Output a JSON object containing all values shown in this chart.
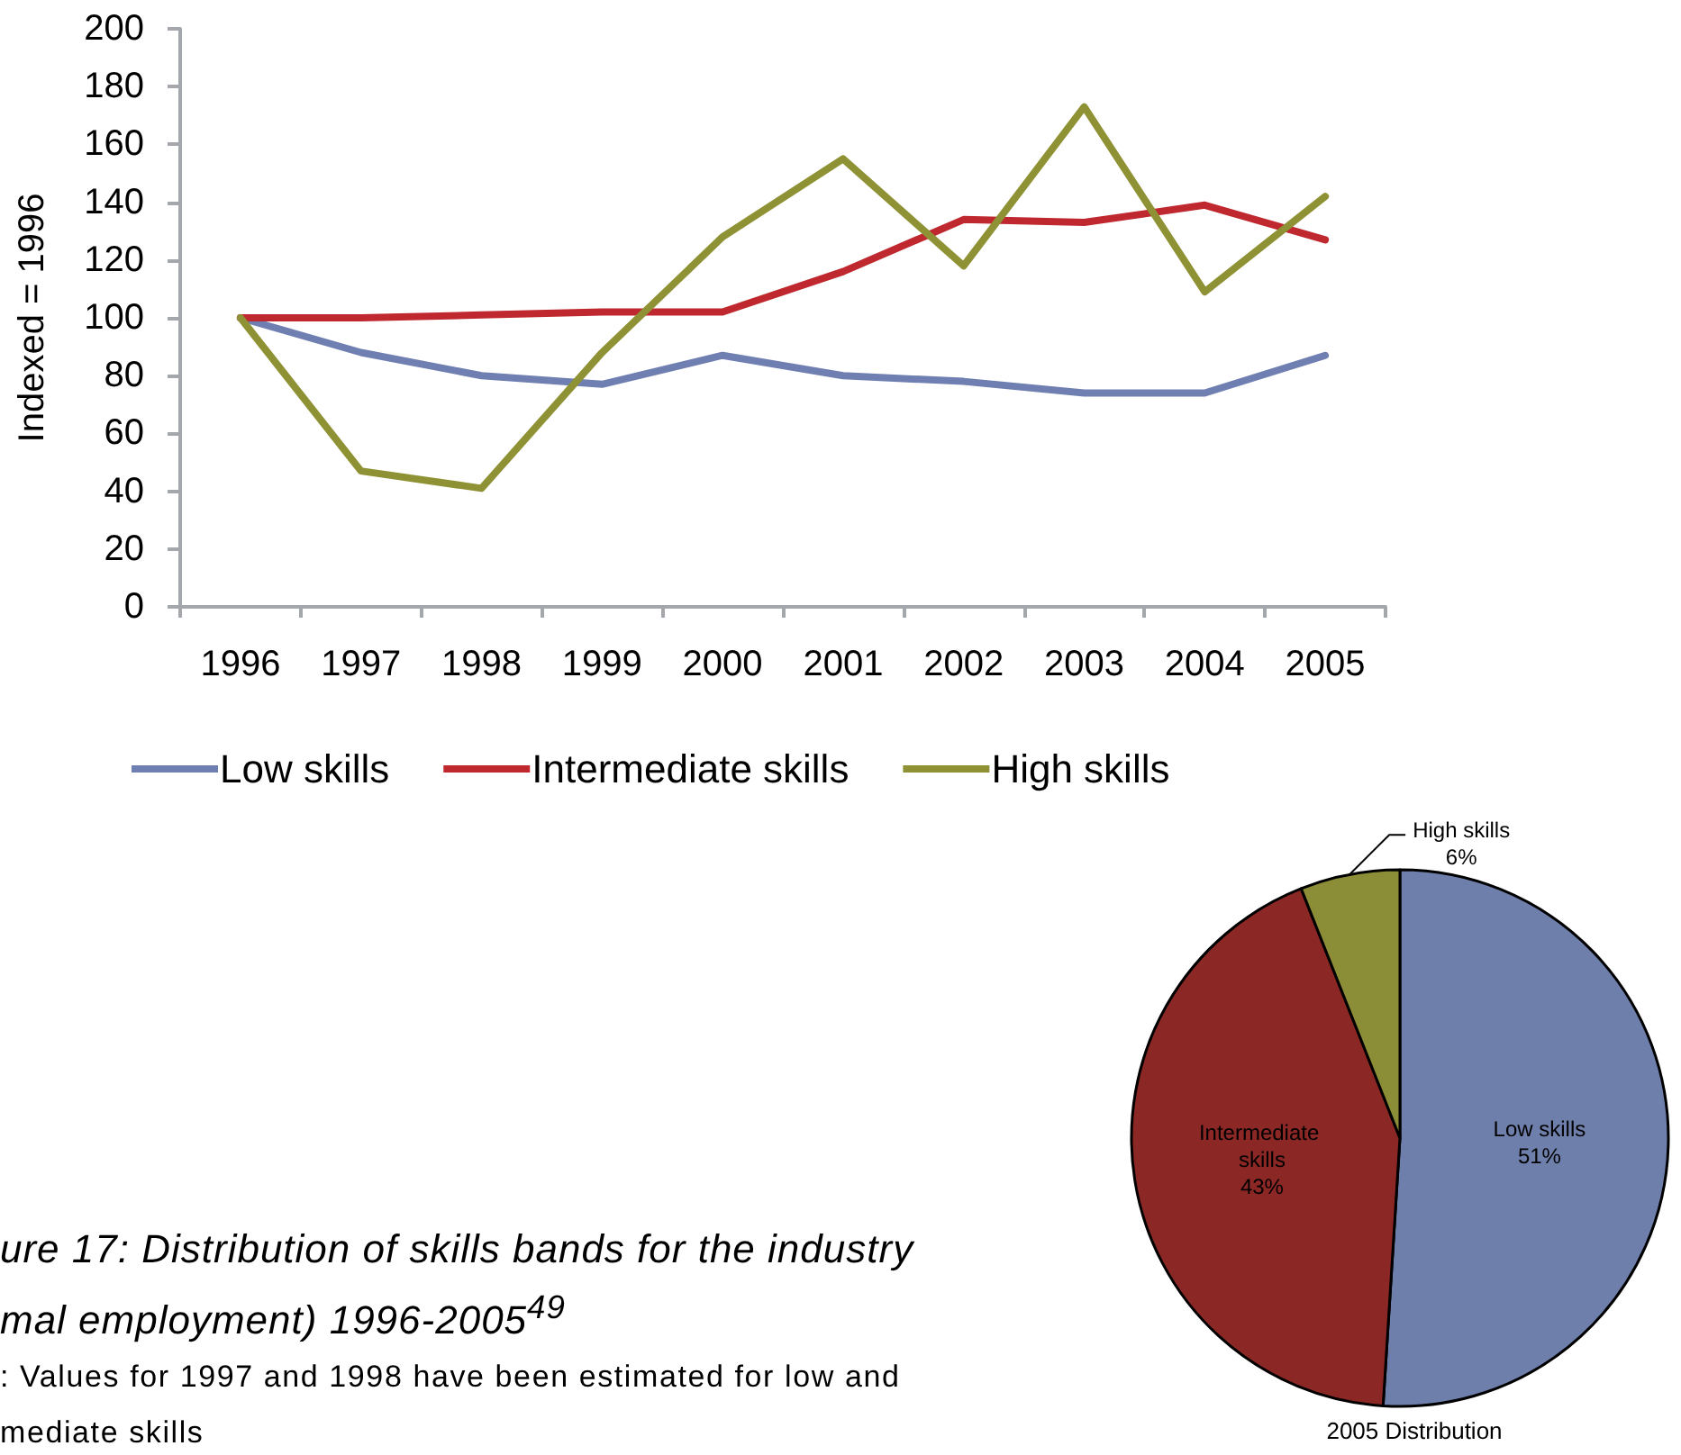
{
  "chart_data": [
    {
      "type": "line",
      "ylabel": "Indexed = 1996",
      "categories": [
        "1996",
        "1997",
        "1998",
        "1999",
        "2000",
        "2001",
        "2002",
        "2003",
        "2004",
        "2005"
      ],
      "series": [
        {
          "name": "Low skills",
          "color": "#6f7fb1",
          "values": [
            100,
            88,
            80,
            77,
            87,
            80,
            78,
            74,
            74,
            87
          ]
        },
        {
          "name": "Intermediate skills",
          "color": "#c0282f",
          "values": [
            100,
            100,
            101,
            102,
            102,
            116,
            134,
            133,
            139,
            127
          ]
        },
        {
          "name": "High skills",
          "color": "#8f9234",
          "values": [
            100,
            47,
            41,
            88,
            128,
            155,
            118,
            173,
            109,
            142
          ]
        }
      ],
      "ylim": [
        0,
        200
      ],
      "yticks": [
        0,
        20,
        40,
        60,
        80,
        100,
        120,
        140,
        160,
        180,
        200
      ],
      "legend": "bottom",
      "marker": "none",
      "line_style": "solid"
    },
    {
      "type": "pie",
      "title": "2005 Distribution",
      "categories": [
        "Low skills",
        "Intermediate skills",
        "High skills"
      ],
      "values": [
        51,
        43,
        6
      ],
      "colors": [
        "#6e7fab",
        "#8b2825",
        "#8b8d37"
      ],
      "value_labels": [
        "51%",
        "43%",
        "6%"
      ]
    },
    {
      "type": "other",
      "title": "ure 17: Distribution of skills bands for the industry\nmal employment) 1996-2005$^{49}$",
      "annotations": [
        ": Values for 1997 and 1998 have been estimated for low and\nmediate skills"
      ]
    }
  ]
}
